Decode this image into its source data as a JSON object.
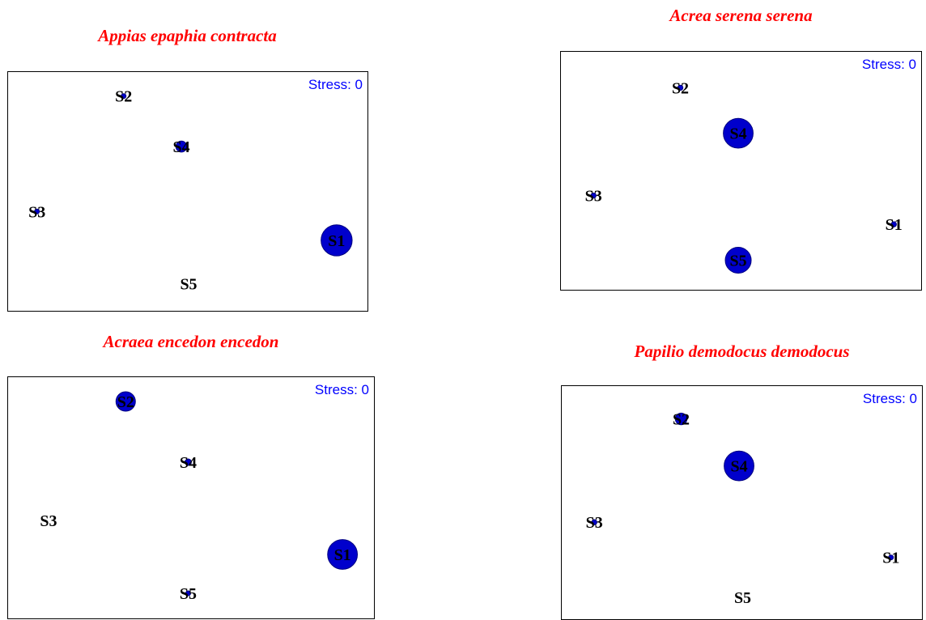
{
  "chart_data": [
    {
      "type": "scatter",
      "title": "Appias epaphia contracta",
      "stress_label": "Stress: 0",
      "xlim": [
        0,
        1
      ],
      "ylim": [
        0,
        1
      ],
      "points": [
        {
          "label": "S1",
          "x": 0.91,
          "y": 0.3,
          "size": 2.4
        },
        {
          "label": "S2",
          "x": 0.32,
          "y": 0.9,
          "size": 0.3
        },
        {
          "label": "S3",
          "x": 0.08,
          "y": 0.42,
          "size": 0.3
        },
        {
          "label": "S4",
          "x": 0.48,
          "y": 0.69,
          "size": 0.85
        },
        {
          "label": "S5",
          "x": 0.5,
          "y": 0.12,
          "size": 0
        }
      ],
      "colors": {
        "bubble": "#0000cc",
        "outline": "#000080",
        "title": "#ff0000",
        "stress": "#0000ff"
      }
    },
    {
      "type": "scatter",
      "title": "Acrea serena serena",
      "stress_label": "Stress: 0",
      "xlim": [
        0,
        1
      ],
      "ylim": [
        0,
        1
      ],
      "points": [
        {
          "label": "S1",
          "x": 0.92,
          "y": 0.28,
          "size": 0.4
        },
        {
          "label": "S2",
          "x": 0.33,
          "y": 0.85,
          "size": 0.4
        },
        {
          "label": "S3",
          "x": 0.09,
          "y": 0.4,
          "size": 0.4
        },
        {
          "label": "S4",
          "x": 0.49,
          "y": 0.66,
          "size": 2.3
        },
        {
          "label": "S5",
          "x": 0.49,
          "y": 0.13,
          "size": 2.0
        }
      ],
      "colors": {
        "bubble": "#0000cc",
        "outline": "#000080",
        "title": "#ff0000",
        "stress": "#0000ff"
      }
    },
    {
      "type": "scatter",
      "title": "Acraea encedon encedon",
      "stress_label": "Stress: 0",
      "xlim": [
        0,
        1
      ],
      "ylim": [
        0,
        1
      ],
      "points": [
        {
          "label": "S1",
          "x": 0.91,
          "y": 0.27,
          "size": 2.3
        },
        {
          "label": "S2",
          "x": 0.32,
          "y": 0.9,
          "size": 1.5
        },
        {
          "label": "S3",
          "x": 0.11,
          "y": 0.41,
          "size": 0
        },
        {
          "label": "S4",
          "x": 0.49,
          "y": 0.65,
          "size": 0.5
        },
        {
          "label": "S5",
          "x": 0.49,
          "y": 0.11,
          "size": 0.3
        }
      ],
      "colors": {
        "bubble": "#0000cc",
        "outline": "#000080",
        "title": "#ff0000",
        "stress": "#0000ff"
      }
    },
    {
      "type": "scatter",
      "title": "Papilio demodocus demodocus",
      "stress_label": "Stress: 0",
      "xlim": [
        0,
        1
      ],
      "ylim": [
        0,
        1
      ],
      "points": [
        {
          "label": "S1",
          "x": 0.91,
          "y": 0.27,
          "size": 0.25
        },
        {
          "label": "S2",
          "x": 0.33,
          "y": 0.86,
          "size": 0.9
        },
        {
          "label": "S3",
          "x": 0.09,
          "y": 0.42,
          "size": 0.4
        },
        {
          "label": "S4",
          "x": 0.49,
          "y": 0.66,
          "size": 2.3
        },
        {
          "label": "S5",
          "x": 0.5,
          "y": 0.1,
          "size": 0
        }
      ],
      "colors": {
        "bubble": "#0000cc",
        "outline": "#000080",
        "title": "#ff0000",
        "stress": "#0000ff"
      }
    }
  ]
}
